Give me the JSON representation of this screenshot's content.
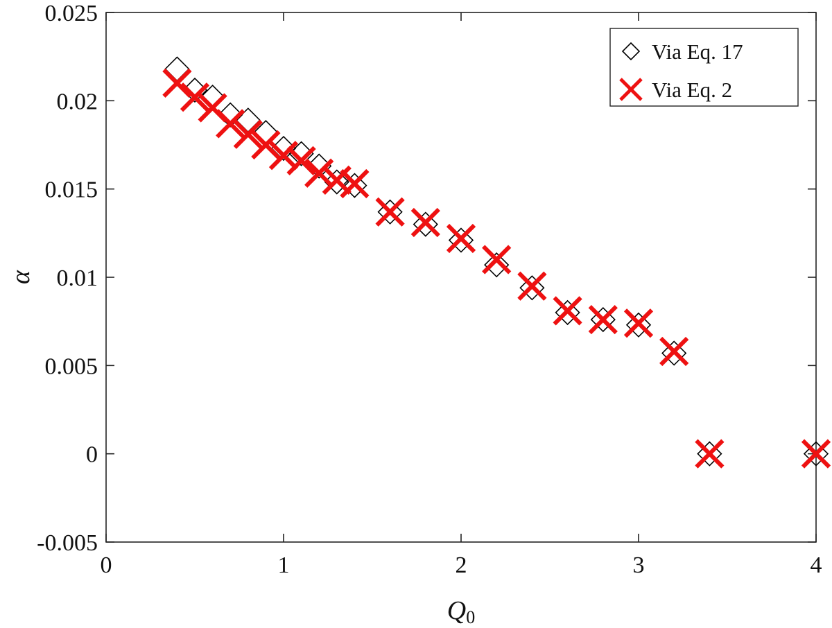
{
  "chart_data": {
    "type": "scatter",
    "title": "",
    "xlabel": "Q",
    "xlabel_sub": "0",
    "ylabel": "α",
    "xlim": [
      0,
      4
    ],
    "ylim": [
      -0.005,
      0.025
    ],
    "xticks": [
      0,
      1,
      2,
      3,
      4
    ],
    "xtick_labels": [
      "0",
      "1",
      "2",
      "3",
      "4"
    ],
    "yticks": [
      -0.005,
      0,
      0.005,
      0.01,
      0.015,
      0.02,
      0.025
    ],
    "ytick_labels": [
      "-0.005",
      "0",
      "0.005",
      "0.01",
      "0.015",
      "0.02",
      "0.025"
    ],
    "grid": false,
    "legend_position": "top-right",
    "series": [
      {
        "name": "Via Eq. 17",
        "marker": "diamond",
        "color": "#000000",
        "x": [
          0.4,
          0.5,
          0.6,
          0.7,
          0.8,
          0.9,
          1.0,
          1.1,
          1.2,
          1.3,
          1.4,
          1.6,
          1.8,
          2.0,
          2.2,
          2.4,
          2.6,
          2.8,
          3.0,
          3.2,
          3.4,
          4.0
        ],
        "y": [
          0.0218,
          0.0206,
          0.0202,
          0.0192,
          0.0189,
          0.0182,
          0.0173,
          0.017,
          0.0163,
          0.0154,
          0.0152,
          0.0137,
          0.013,
          0.0121,
          0.0107,
          0.0094,
          0.008,
          0.0076,
          0.0073,
          0.0057,
          0.0,
          0.0
        ]
      },
      {
        "name": "Via Eq. 2",
        "marker": "x",
        "color": "#ee1111",
        "x": [
          0.4,
          0.5,
          0.6,
          0.7,
          0.8,
          0.9,
          1.0,
          1.1,
          1.2,
          1.3,
          1.4,
          1.6,
          1.8,
          2.0,
          2.2,
          2.4,
          2.6,
          2.8,
          3.0,
          3.2,
          3.4,
          4.0
        ],
        "y": [
          0.021,
          0.0202,
          0.0196,
          0.0187,
          0.0181,
          0.0175,
          0.0169,
          0.0166,
          0.0159,
          0.0155,
          0.0153,
          0.0137,
          0.0131,
          0.0122,
          0.011,
          0.0095,
          0.0081,
          0.0076,
          0.0074,
          0.0058,
          0.0,
          0.0
        ]
      }
    ]
  }
}
